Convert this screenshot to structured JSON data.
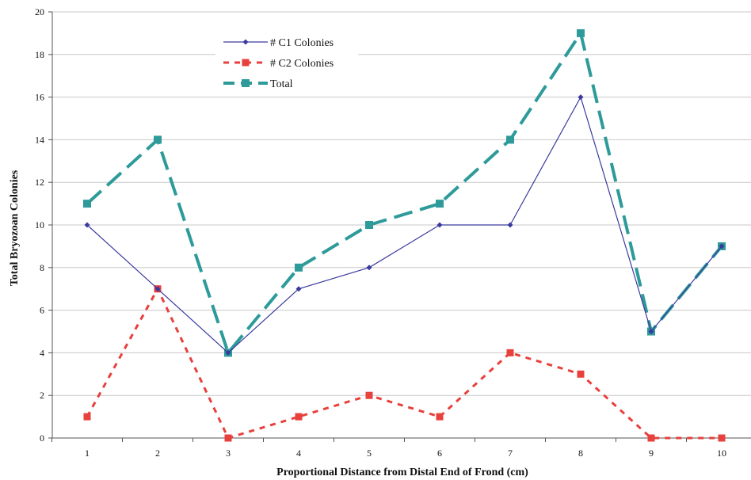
{
  "chart_data": {
    "type": "line",
    "title": "",
    "xlabel": "Proportional Distance from Distal End of Frond (cm)",
    "ylabel": "Total Bryozoan Colonies",
    "categories": [
      1,
      2,
      3,
      4,
      5,
      6,
      7,
      8,
      9,
      10
    ],
    "ylim": [
      0,
      20
    ],
    "yticks": [
      0,
      2,
      4,
      6,
      8,
      10,
      12,
      14,
      16,
      18,
      20
    ],
    "grid": "horizontal",
    "legend": "top-left (inside plot)",
    "series": [
      {
        "name": "# C1 Colonies",
        "color": "#3a3a9e",
        "line": "solid",
        "marker": "diamond",
        "values": [
          10,
          7,
          4,
          7,
          8,
          10,
          10,
          16,
          5,
          9
        ]
      },
      {
        "name": "# C2 Colonies",
        "color": "#e8403c",
        "line": "dashed",
        "marker": "square",
        "values": [
          1,
          7,
          0,
          1,
          2,
          1,
          4,
          3,
          0,
          0
        ]
      },
      {
        "name": "Total",
        "color": "#2e9a9a",
        "line": "dashed",
        "marker": "square",
        "values": [
          11,
          14,
          4,
          8,
          10,
          11,
          14,
          19,
          5,
          9
        ]
      }
    ]
  }
}
